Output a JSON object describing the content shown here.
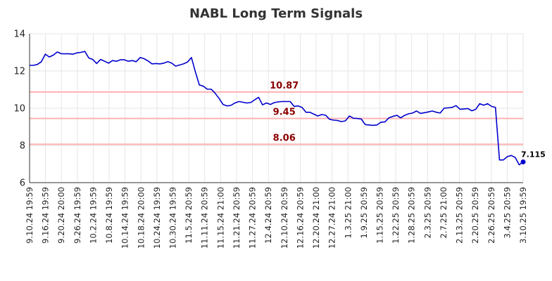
{
  "chart_data": {
    "type": "line",
    "title": "NABL Long Term Signals",
    "xlabel": "",
    "ylabel": "",
    "ylim": [
      6,
      14
    ],
    "yticks": [
      6,
      8,
      10,
      12,
      14
    ],
    "grid": true,
    "colors": {
      "line": "#0000cc",
      "hline": "#ffb3b3",
      "hlabel": "#8b0000",
      "title": "#333333"
    },
    "x_tick_labels": [
      "9.10.24 19:59",
      "9.16.24 19:59",
      "9.20.24 20:00",
      "9.26.24 19:59",
      "10.2.24 19:59",
      "10.8.24 19:59",
      "10.14.24 19:59",
      "10.18.24 20:00",
      "10.24.24 19:59",
      "10.30.24 19:59",
      "11.5.24 20:59",
      "11.11.24 20:59",
      "11.15.24 21:00",
      "11.21.24 20:59",
      "11.27.24 20:59",
      "12.4.24 20:59",
      "12.10.24 20:59",
      "12.16.24 20:59",
      "12.20.24 21:00",
      "12.27.24 21:00",
      "1.3.25 21:00",
      "1.9.25 20:59",
      "1.15.25 20:59",
      "1.22.25 20:59",
      "1.28.25 20:59",
      "2.3.25 20:59",
      "2.7.25 21:00",
      "2.13.25 20:59",
      "2.20.25 20:59",
      "2.26.25 20:59",
      "3.4.25 20:59",
      "3.10.25 19:59"
    ],
    "horizontal_lines": [
      {
        "label": "10.87",
        "value": 10.87
      },
      {
        "label": "9.45",
        "value": 9.45
      },
      {
        "label": "8.06",
        "value": 8.06
      }
    ],
    "last_value_label": "7.115",
    "series": [
      {
        "values": [
          12.3,
          12.3,
          12.35,
          12.5,
          12.9,
          12.75,
          12.85,
          13.02,
          12.93,
          12.92,
          12.92,
          12.9,
          12.97,
          13.0,
          13.05,
          12.7,
          12.62,
          12.4,
          12.62,
          12.52,
          12.42,
          12.56,
          12.52,
          12.6,
          12.6,
          12.52,
          12.56,
          12.5,
          12.72,
          12.66,
          12.54,
          12.38,
          12.4,
          12.38,
          12.42,
          12.5,
          12.42,
          12.26,
          12.32,
          12.38,
          12.48,
          12.72,
          11.95,
          11.25,
          11.18,
          11.02,
          11.02,
          10.8,
          10.52,
          10.2,
          10.12,
          10.15,
          10.28,
          10.36,
          10.32,
          10.28,
          10.3,
          10.45,
          10.58,
          10.18,
          10.28,
          10.2,
          10.3,
          10.34,
          10.36,
          10.36,
          10.36,
          10.1,
          10.12,
          10.04,
          9.78,
          9.78,
          9.68,
          9.58,
          9.66,
          9.62,
          9.4,
          9.36,
          9.34,
          9.28,
          9.32,
          9.58,
          9.46,
          9.45,
          9.42,
          9.12,
          9.1,
          9.08,
          9.1,
          9.25,
          9.26,
          9.48,
          9.56,
          9.62,
          9.48,
          9.62,
          9.7,
          9.74,
          9.85,
          9.72,
          9.76,
          9.8,
          9.85,
          9.78,
          9.74,
          10.0,
          10.02,
          10.04,
          10.14,
          9.94,
          9.96,
          9.98,
          9.86,
          9.94,
          10.24,
          10.16,
          10.24,
          10.1,
          10.04,
          7.22,
          7.22,
          7.4,
          7.46,
          7.35,
          6.96,
          7.115
        ]
      }
    ]
  }
}
